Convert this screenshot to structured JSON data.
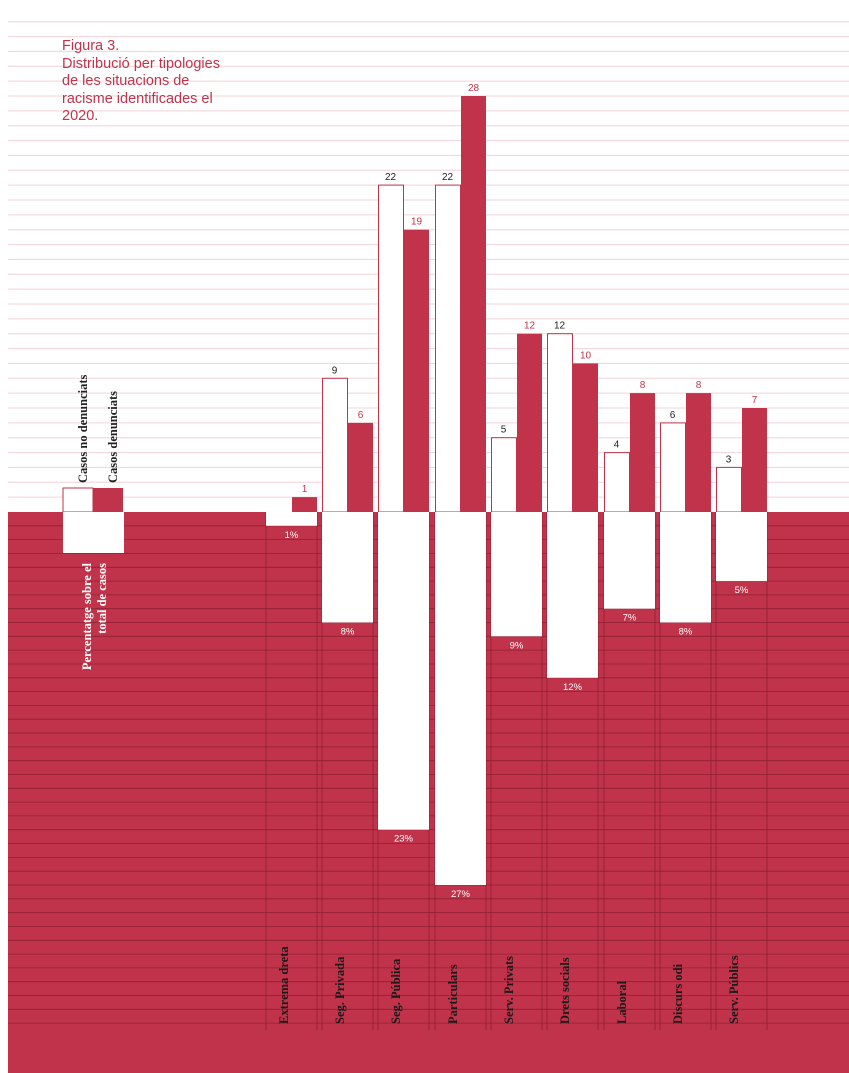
{
  "title": {
    "line1": "Figura 3.",
    "line2": "Distribució per tipologies",
    "line3": "de les situacions de",
    "line4": "racisme identificades el",
    "line5": "2020."
  },
  "legend": {
    "not_reported": "Casos no denunciats",
    "reported": "Casos denunciats",
    "percentage_line1": "Percentatge sobre el",
    "percentage_line2": "total de casos"
  },
  "colors": {
    "accent": "#c0334a",
    "label_text": "#333333",
    "background": "#ffffff"
  },
  "chart_data": {
    "type": "bar",
    "categories": [
      "Extrema dreta",
      "Seg. Privada",
      "Seg. Pública",
      "Particulars",
      "Serv. Privats",
      "Drets socials",
      "Laboral",
      "Discurs odi",
      "Serv. Públics"
    ],
    "series": [
      {
        "name": "Casos no denunciats",
        "values": [
          null,
          9,
          22,
          22,
          5,
          12,
          4,
          6,
          3
        ]
      },
      {
        "name": "Casos denunciats",
        "values": [
          1,
          6,
          19,
          28,
          12,
          10,
          8,
          8,
          7
        ]
      },
      {
        "name": "Percentatge sobre el total de casos",
        "values": [
          1,
          8,
          23,
          27,
          9,
          12,
          7,
          8,
          5
        ]
      }
    ],
    "percent_labels": [
      "1%",
      "8%",
      "23%",
      "27%",
      "9%",
      "12%",
      "7%",
      "8%",
      "5%"
    ],
    "ylim": [
      0,
      28
    ]
  }
}
